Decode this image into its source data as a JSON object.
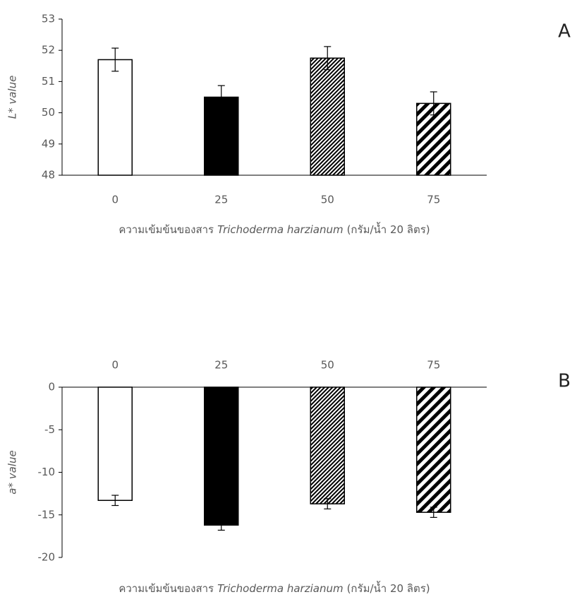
{
  "chart_data": [
    {
      "type": "bar",
      "label": "A",
      "ylabel": "L* value",
      "xlabel": [
        "ความเข้มข้นของสาร",
        "Trichoderma harzianum",
        "(กรัม/น้ำ 20 ลิตร)"
      ],
      "categories": [
        "0",
        "25",
        "50",
        "75"
      ],
      "values": [
        51.7,
        50.5,
        51.75,
        50.3
      ],
      "errors": [
        0.37,
        0.37,
        0.37,
        0.37
      ],
      "bar_styles": [
        "open",
        "solid",
        "dense-hatch",
        "wide-hatch"
      ],
      "ylim": [
        48,
        53
      ],
      "yticks": [
        48,
        49,
        50,
        51,
        52,
        53
      ],
      "category_labels": "below"
    },
    {
      "type": "bar",
      "label": "B",
      "ylabel": "a* value",
      "xlabel": [
        "ความเข้มข้นของสาร",
        "Trichoderma harzianum",
        "(กรัม/น้ำ 20 ลิตร)"
      ],
      "categories": [
        "0",
        "25",
        "50",
        "75"
      ],
      "values": [
        -13.3,
        -16.2,
        -13.7,
        -14.7
      ],
      "errors": [
        0.6,
        0.6,
        0.6,
        0.6
      ],
      "bar_styles": [
        "open",
        "solid",
        "dense-hatch",
        "wide-hatch"
      ],
      "ylim": [
        -20,
        0
      ],
      "yticks": [
        -20,
        -15,
        -10,
        -5,
        0
      ],
      "category_labels": "above"
    }
  ]
}
